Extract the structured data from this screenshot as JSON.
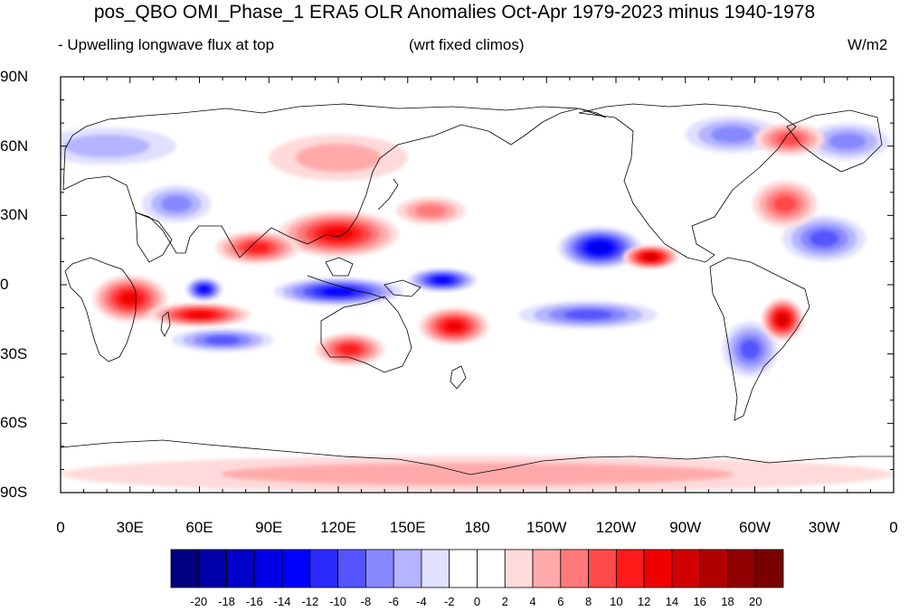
{
  "title": "pos_QBO OMI_Phase_1 ERA5 OLR Anomalies Oct-Apr 1979-2023 minus 1940-1978",
  "subtitle_left": "- Upwelling longwave flux at top",
  "subtitle_center": "(wrt fixed climos)",
  "units": "W/m2",
  "lat_labels": [
    "90N",
    "60N",
    "30N",
    "0",
    "30S",
    "60S",
    "90S"
  ],
  "lon_labels": [
    "0",
    "30E",
    "60E",
    "90E",
    "120E",
    "150E",
    "180",
    "150W",
    "120W",
    "90W",
    "60W",
    "30W",
    "0"
  ],
  "colorbar": {
    "labels": [
      "-20",
      "-18",
      "-16",
      "-14",
      "-12",
      "-10",
      "-8",
      "-6",
      "-4",
      "-2",
      "0",
      "2",
      "4",
      "6",
      "8",
      "10",
      "12",
      "14",
      "16",
      "18",
      "20"
    ],
    "colors": [
      "#000080",
      "#0000a8",
      "#0000c8",
      "#0000e8",
      "#0000ff",
      "#2a2aff",
      "#5555ff",
      "#8888ff",
      "#b4b4ff",
      "#e0e0ff",
      "#ffffff",
      "#ffffff",
      "#ffdada",
      "#ffaaaa",
      "#ff7a7a",
      "#ff4a4a",
      "#ff1a1a",
      "#f00000",
      "#d00000",
      "#b00000",
      "#900000",
      "#7a0000"
    ]
  },
  "anomaly_blobs": [
    {
      "lon": 62,
      "lat": -2,
      "rx": 8,
      "ry": 5,
      "level": -12
    },
    {
      "lon": 120,
      "lat": -3,
      "rx": 28,
      "ry": 6,
      "level": -12
    },
    {
      "lon": 165,
      "lat": 2,
      "rx": 15,
      "ry": 5,
      "level": -12
    },
    {
      "lon": 233,
      "lat": 16,
      "rx": 18,
      "ry": 9,
      "level": -14
    },
    {
      "lon": 228,
      "lat": -13,
      "rx": 30,
      "ry": 6,
      "level": -8
    },
    {
      "lon": 70,
      "lat": -24,
      "rx": 22,
      "ry": 5,
      "level": -8
    },
    {
      "lon": 330,
      "lat": 20,
      "rx": 18,
      "ry": 10,
      "level": -8
    },
    {
      "lon": 298,
      "lat": -28,
      "rx": 12,
      "ry": 12,
      "level": -8
    },
    {
      "lon": 20,
      "lat": 60,
      "rx": 30,
      "ry": 8,
      "level": -4
    },
    {
      "lon": 50,
      "lat": 35,
      "rx": 15,
      "ry": 8,
      "level": -6
    },
    {
      "lon": 290,
      "lat": 65,
      "rx": 20,
      "ry": 8,
      "level": -6
    },
    {
      "lon": 340,
      "lat": 62,
      "rx": 18,
      "ry": 8,
      "level": -6
    },
    {
      "lon": 120,
      "lat": 22,
      "rx": 26,
      "ry": 10,
      "level": 12
    },
    {
      "lon": 85,
      "lat": 16,
      "rx": 18,
      "ry": 7,
      "level": 10
    },
    {
      "lon": 30,
      "lat": -6,
      "rx": 16,
      "ry": 10,
      "level": 12
    },
    {
      "lon": 60,
      "lat": -13,
      "rx": 22,
      "ry": 5,
      "level": 12
    },
    {
      "lon": 125,
      "lat": -28,
      "rx": 15,
      "ry": 7,
      "level": 10
    },
    {
      "lon": 170,
      "lat": -18,
      "rx": 15,
      "ry": 8,
      "level": 12
    },
    {
      "lon": 255,
      "lat": 12,
      "rx": 12,
      "ry": 5,
      "level": 14
    },
    {
      "lon": 312,
      "lat": -15,
      "rx": 9,
      "ry": 9,
      "level": 14
    },
    {
      "lon": 313,
      "lat": 35,
      "rx": 14,
      "ry": 10,
      "level": 8
    },
    {
      "lon": 160,
      "lat": 32,
      "rx": 15,
      "ry": 6,
      "level": 6
    },
    {
      "lon": 120,
      "lat": 55,
      "rx": 30,
      "ry": 10,
      "level": 4
    },
    {
      "lon": 315,
      "lat": 63,
      "rx": 15,
      "ry": 7,
      "level": 8
    },
    {
      "lon": 180,
      "lat": -82,
      "rx": 180,
      "ry": 8,
      "level": 4
    }
  ]
}
